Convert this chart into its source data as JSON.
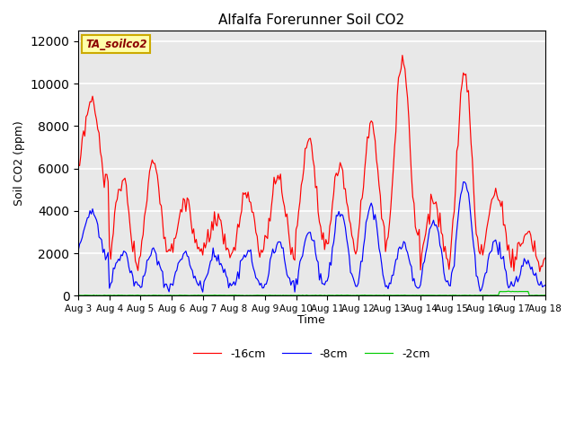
{
  "title": "Alfalfa Forerunner Soil CO2",
  "ylabel": "Soil CO2 (ppm)",
  "xlabel": "Time",
  "ylim": [
    0,
    12500
  ],
  "background_color": "#e8e8e8",
  "line_colors": [
    "red",
    "blue",
    "#00cc00"
  ],
  "line_labels": [
    "-16cm",
    "-8cm",
    "-2cm"
  ],
  "legend_label": "TA_soilco2",
  "x_tick_labels": [
    "Aug 3",
    "Aug 4",
    "Aug 5",
    "Aug 6",
    "Aug 7",
    "Aug 8",
    "Aug 9",
    "Aug 10",
    "Aug 11",
    "Aug 12",
    "Aug 13",
    "Aug 14",
    "Aug 15",
    "Aug 16",
    "Aug 17",
    "Aug 18"
  ],
  "x_tick_positions": [
    0,
    24,
    48,
    72,
    96,
    120,
    144,
    168,
    192,
    216,
    240,
    264,
    288,
    312,
    336,
    360
  ],
  "yticks": [
    0,
    2000,
    4000,
    6000,
    8000,
    10000,
    12000
  ],
  "red_day_peaks": [
    9100,
    5500,
    6400,
    4400,
    3500,
    4800,
    5700,
    7500,
    6000,
    8200,
    11200,
    4500,
    10500,
    5000,
    3000
  ],
  "red_day_troughs": [
    5500,
    1500,
    2000,
    2000,
    1800,
    2000,
    2000,
    2500,
    2200,
    2500,
    3000,
    1500,
    2000,
    2000,
    1500
  ],
  "blue_day_peaks": [
    4000,
    2000,
    2000,
    2000,
    2000,
    2000,
    2500,
    3000,
    4000,
    4300,
    2500,
    3500,
    5500,
    2500,
    1500
  ],
  "blue_day_troughs": [
    2000,
    500,
    400,
    400,
    400,
    400,
    500,
    500,
    500,
    500,
    400,
    500,
    500,
    500,
    500
  ],
  "green_spike_day": 14,
  "green_spike_val": 200,
  "green_base": 20
}
